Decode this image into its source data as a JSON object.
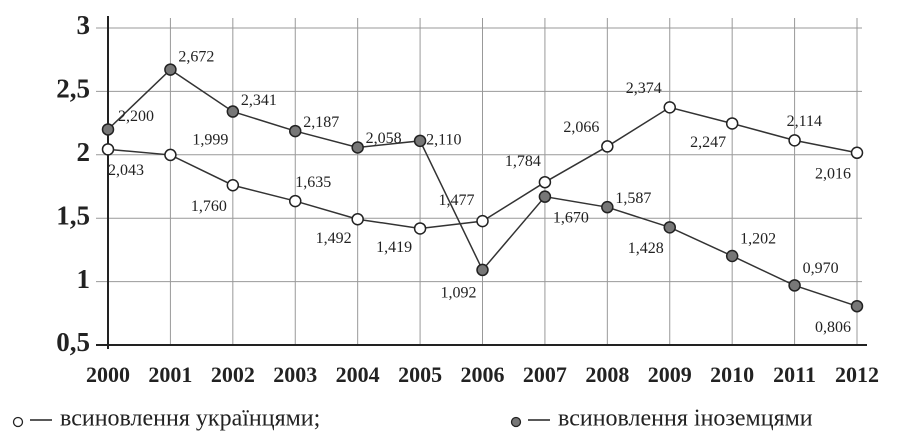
{
  "chart_data": {
    "type": "line",
    "categories": [
      "2000",
      "2001",
      "2002",
      "2003",
      "2004",
      "2005",
      "2006",
      "2007",
      "2008",
      "2009",
      "2010",
      "2011",
      "2012"
    ],
    "ylim": [
      0.5,
      3
    ],
    "yticks": [
      {
        "value": 0.5,
        "label": "0,5"
      },
      1,
      {
        "value": 1.5,
        "label": "1,5"
      },
      2,
      {
        "value": 2.5,
        "label": "2,5"
      },
      3
    ],
    "grid": true,
    "series": [
      {
        "name": "всиновлення українцями;",
        "color": "#ffffff",
        "values": [
          2.043,
          1.999,
          1.76,
          1.635,
          1.492,
          1.419,
          1.477,
          1.784,
          2.066,
          2.374,
          2.247,
          2.114,
          2.016
        ],
        "value_labels": [
          "2,043",
          "1,999",
          "1,760",
          "1,635",
          "1,492",
          "1,419",
          "1,477",
          "1,784",
          "2,066",
          "2,374",
          "2,247",
          "2,114",
          "2,016"
        ]
      },
      {
        "name": "всиновлення іноземцями",
        "color": "#777777",
        "values": [
          2.2,
          2.672,
          2.341,
          2.187,
          2.058,
          2.11,
          1.092,
          1.67,
          1.587,
          1.428,
          1.202,
          0.97,
          0.806
        ],
        "value_labels": [
          "2,200",
          "2,672",
          "2,341",
          "2,187",
          "2,058",
          "2,110",
          "1,092",
          "1,670",
          "1,587",
          "1,428",
          "1,202",
          "0,970",
          "0,806"
        ]
      }
    ]
  }
}
